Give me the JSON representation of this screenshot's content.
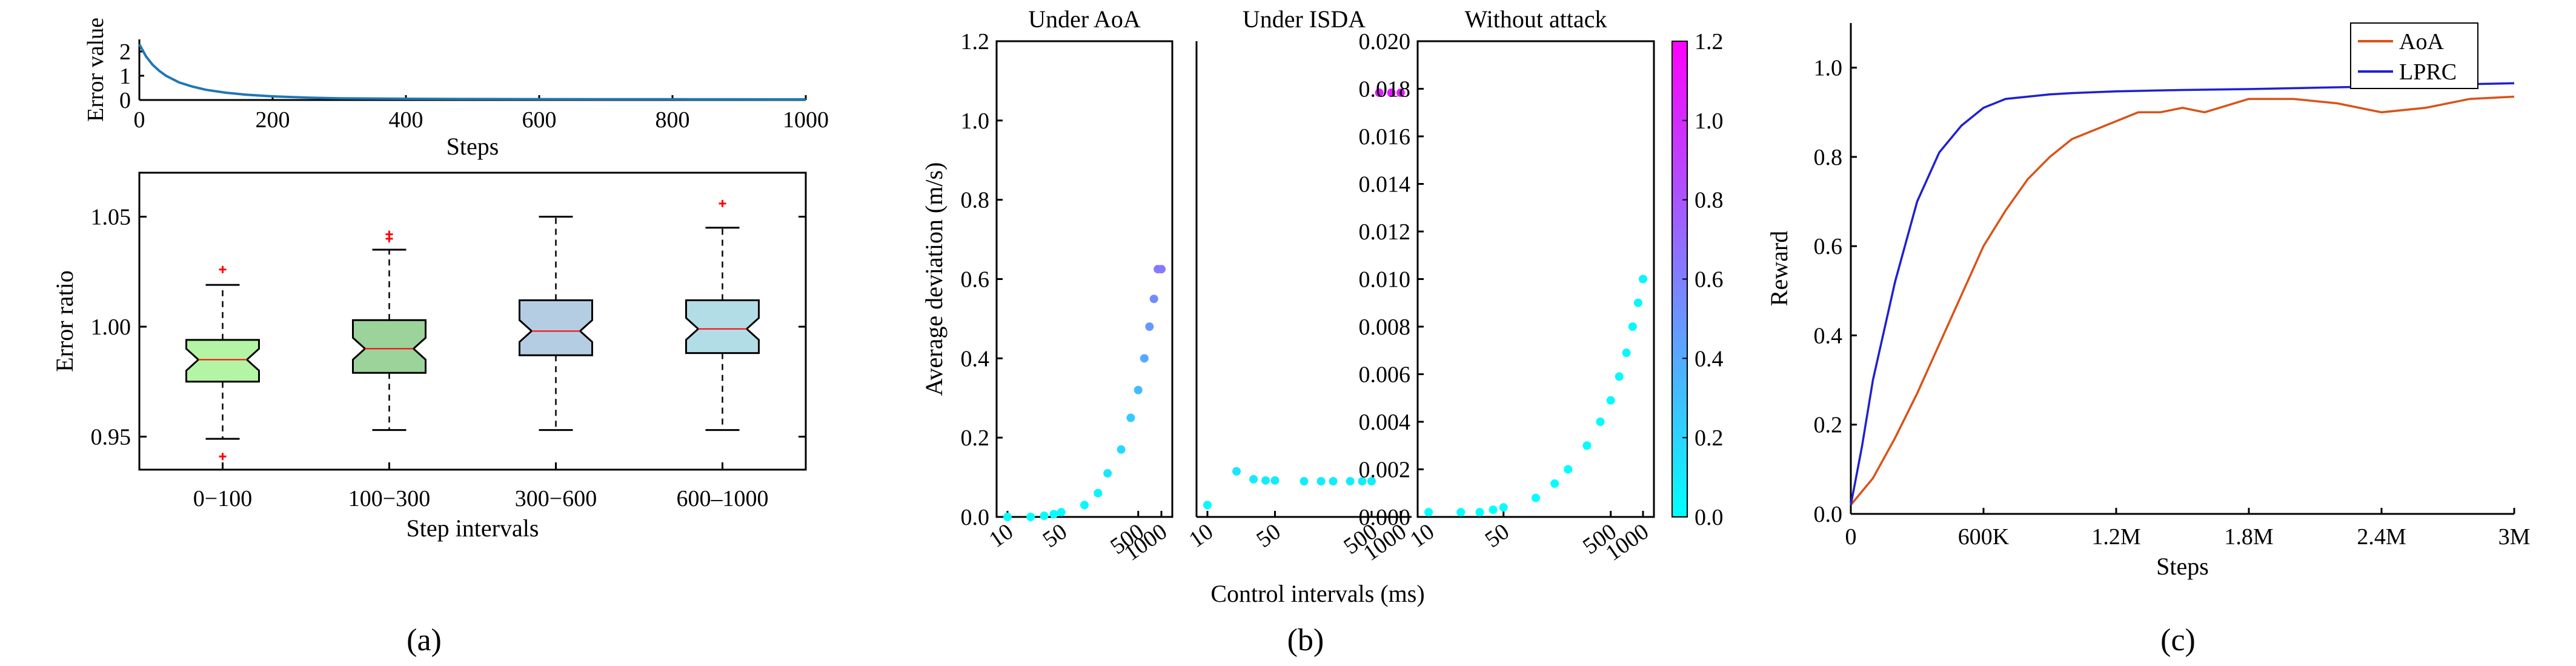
{
  "chart_data": [
    {
      "panel": "a-top",
      "type": "line",
      "xlabel": "Steps",
      "ylabel": "Error value",
      "xlim": [
        0,
        1000
      ],
      "ylim": [
        0,
        2.5
      ],
      "xticks": [
        "0",
        "200",
        "400",
        "600",
        "800",
        "1000"
      ],
      "yticks": [
        "0",
        "1",
        "2"
      ],
      "colors": {
        "line": "#1f77b4"
      },
      "series": [
        {
          "x": [
            0,
            10,
            20,
            30,
            40,
            60,
            80,
            100,
            130,
            160,
            200,
            250,
            300,
            400,
            500,
            600,
            700,
            800,
            900,
            1000
          ],
          "y": [
            2.3,
            1.8,
            1.45,
            1.2,
            1.0,
            0.72,
            0.55,
            0.42,
            0.3,
            0.22,
            0.15,
            0.1,
            0.07,
            0.05,
            0.04,
            0.035,
            0.03,
            0.03,
            0.028,
            0.025
          ]
        }
      ]
    },
    {
      "panel": "a-bottom",
      "type": "box",
      "xlabel": "Step intervals",
      "ylabel": "Error ratio",
      "ylim": [
        0.935,
        1.07
      ],
      "yticks": [
        "0.95",
        "1.00",
        "1.05"
      ],
      "categories": [
        "0−100",
        "100−300",
        "300−600",
        "600–1000"
      ],
      "boxes": [
        {
          "whisker_low": 0.949,
          "q1": 0.975,
          "median": 0.985,
          "q3": 0.994,
          "whisker_high": 1.019,
          "outliers": [
            0.941,
            1.026
          ],
          "color": "#b3f5a4"
        },
        {
          "whisker_low": 0.953,
          "q1": 0.979,
          "median": 0.99,
          "q3": 1.003,
          "whisker_high": 1.035,
          "outliers": [
            1.04,
            1.042
          ],
          "color": "#9bd39b"
        },
        {
          "whisker_low": 0.953,
          "q1": 0.987,
          "median": 0.998,
          "q3": 1.012,
          "whisker_high": 1.05,
          "outliers": [],
          "color": "#b5cde3"
        },
        {
          "whisker_low": 0.953,
          "q1": 0.988,
          "median": 0.999,
          "q3": 1.012,
          "whisker_high": 1.045,
          "outliers": [
            1.056
          ],
          "color": "#b3dde6"
        }
      ],
      "colors": {
        "outlier": "#ff0000",
        "median": "#ff0000"
      }
    },
    {
      "panel": "b",
      "type": "scatter",
      "ylabel": "Average deviation (m/s)",
      "xlabel": "Control intervals (ms)",
      "colorbar": {
        "min": 0.0,
        "max": 1.2,
        "ticks": [
          "0.0",
          "0.2",
          "0.4",
          "0.6",
          "0.8",
          "1.0",
          "1.2"
        ],
        "low_color": "#00ffff",
        "high_color": "#ff00ff"
      },
      "subplots": [
        {
          "title": "Under AoA",
          "ylim": [
            0,
            1.2
          ],
          "yticks": [
            "0.0",
            "0.2",
            "0.4",
            "0.6",
            "0.8",
            "1.0",
            "1.2"
          ],
          "xticks": [
            "10",
            "50",
            "500",
            "1000"
          ],
          "x": [
            10,
            20,
            30,
            40,
            50,
            100,
            150,
            200,
            300,
            400,
            500,
            600,
            700,
            800,
            900,
            1000
          ],
          "y": [
            0.0,
            0.0,
            0.003,
            0.007,
            0.012,
            0.03,
            0.06,
            0.11,
            0.17,
            0.25,
            0.32,
            0.4,
            0.48,
            0.55,
            0.625,
            0.625
          ]
        },
        {
          "title": "Under ISDA",
          "ylim": [
            0,
            1.2
          ],
          "xticks": [
            "10",
            "50",
            "500",
            "1000"
          ],
          "x": [
            10,
            20,
            30,
            40,
            50,
            100,
            150,
            200,
            300,
            400,
            500,
            600,
            800,
            1000
          ],
          "y": [
            0.03,
            0.115,
            0.095,
            0.092,
            0.092,
            0.09,
            0.09,
            0.09,
            0.09,
            0.09,
            0.09,
            1.07,
            1.07,
            1.07
          ]
        },
        {
          "title": "Without attack",
          "ylim": [
            0,
            0.02
          ],
          "yticks": [
            "0.000",
            "0.002",
            "0.004",
            "0.006",
            "0.008",
            "0.010",
            "0.012",
            "0.014",
            "0.016",
            "0.018",
            "0.020"
          ],
          "xticks": [
            "10",
            "50",
            "500",
            "1000"
          ],
          "x": [
            10,
            20,
            30,
            40,
            50,
            100,
            150,
            200,
            300,
            400,
            500,
            600,
            700,
            800,
            900,
            1000
          ],
          "y": [
            0.0002,
            0.0002,
            0.0002,
            0.0003,
            0.0004,
            0.0008,
            0.0014,
            0.002,
            0.003,
            0.004,
            0.0049,
            0.0059,
            0.0069,
            0.008,
            0.009,
            0.01
          ]
        }
      ]
    },
    {
      "panel": "c",
      "type": "line",
      "xlabel": "Steps",
      "ylabel": "Reward",
      "xlim": [
        0,
        3000000
      ],
      "ylim": [
        0,
        1.1
      ],
      "xticks": [
        "0",
        "600K",
        "1.2M",
        "1.8M",
        "2.4M",
        "3M"
      ],
      "yticks": [
        "0.0",
        "0.2",
        "0.4",
        "0.6",
        "0.8",
        "1.0"
      ],
      "legend_position": "top-right",
      "series": [
        {
          "name": "AoA",
          "color": "#d95319",
          "x": [
            0,
            100000,
            200000,
            300000,
            400000,
            500000,
            600000,
            700000,
            800000,
            900000,
            1000000,
            1100000,
            1200000,
            1300000,
            1400000,
            1500000,
            1600000,
            1800000,
            2000000,
            2200000,
            2400000,
            2600000,
            2800000,
            3000000
          ],
          "y": [
            0.02,
            0.08,
            0.17,
            0.27,
            0.38,
            0.49,
            0.6,
            0.68,
            0.75,
            0.8,
            0.84,
            0.86,
            0.88,
            0.9,
            0.9,
            0.91,
            0.9,
            0.93,
            0.93,
            0.92,
            0.9,
            0.91,
            0.93,
            0.935
          ]
        },
        {
          "name": "LPRC",
          "color": "#2020d0",
          "x": [
            0,
            50000,
            100000,
            200000,
            300000,
            400000,
            500000,
            600000,
            700000,
            800000,
            900000,
            1000000,
            1200000,
            1500000,
            1800000,
            2100000,
            2400000,
            2700000,
            3000000
          ],
          "y": [
            0.02,
            0.15,
            0.3,
            0.52,
            0.7,
            0.81,
            0.87,
            0.91,
            0.93,
            0.935,
            0.94,
            0.943,
            0.947,
            0.95,
            0.952,
            0.955,
            0.958,
            0.962,
            0.965
          ]
        }
      ]
    }
  ],
  "captions": [
    "(a)",
    "(b)",
    "(c)"
  ]
}
